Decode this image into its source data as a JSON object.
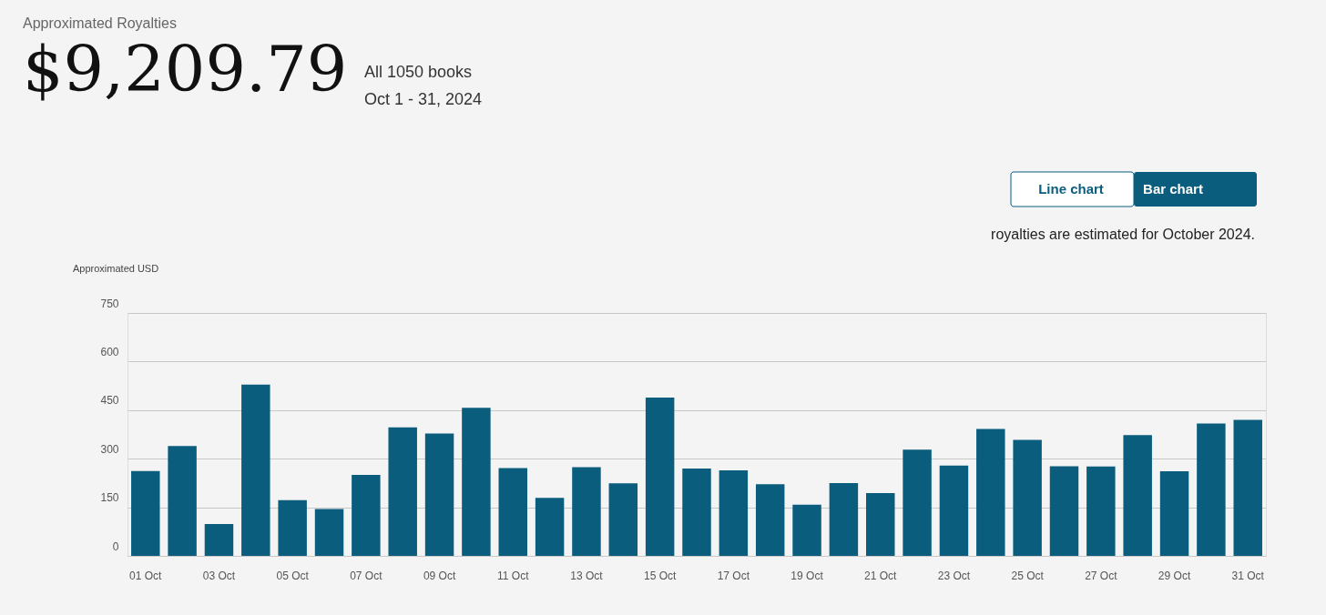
{
  "chart_data": {
    "type": "bar",
    "title": "Approximated Royalties",
    "ylabel": "Approximated USD",
    "categories": [
      "01 Oct",
      null,
      "03 Oct",
      null,
      "05 Oct",
      null,
      "07 Oct",
      null,
      "09 Oct",
      null,
      "11 Oct",
      null,
      "13 Oct",
      null,
      "15 Oct",
      null,
      "17 Oct",
      null,
      "19 Oct",
      null,
      "21 Oct",
      null,
      "23 Oct",
      null,
      "25 Oct",
      null,
      "27 Oct",
      null,
      "29 Oct",
      null,
      "31 Oct"
    ],
    "values": [
      262,
      339,
      98,
      529,
      172,
      145,
      250,
      397,
      378,
      457,
      271,
      179,
      274,
      224,
      489,
      270,
      264,
      221,
      158,
      225,
      194,
      328,
      279,
      392,
      358,
      277,
      276,
      373,
      261,
      409,
      420
    ],
    "color": "#0b5d7d",
    "ylim": [
      0,
      750
    ],
    "yticks": [
      0,
      150,
      300,
      450,
      600,
      750
    ],
    "grid": "y",
    "annotations": [
      "$9,209.79",
      "All 1050 books",
      "Oct 1 - 31, 2024",
      "Line chart",
      "Bar chart",
      "royalties are estimated for October 2024."
    ]
  }
}
